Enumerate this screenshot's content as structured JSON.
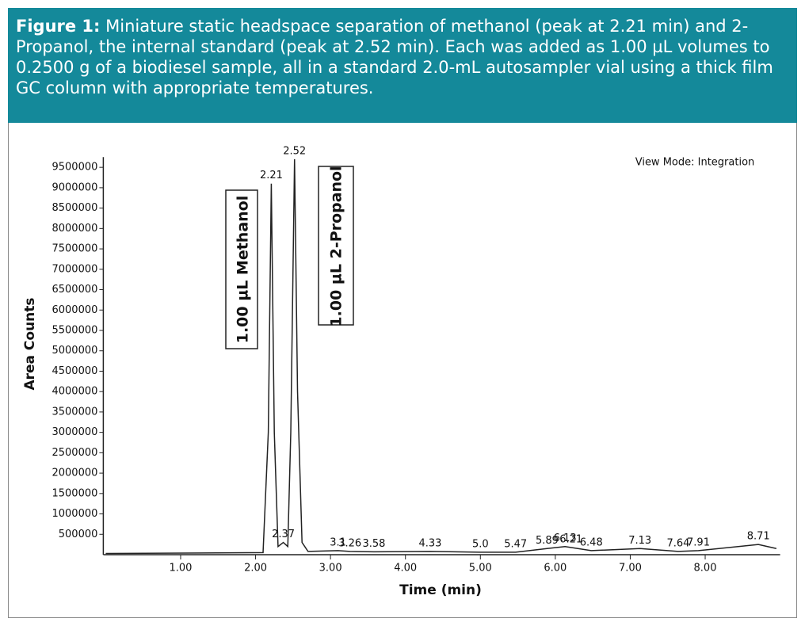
{
  "chart_data": {
    "type": "line",
    "caption_label": "Figure 1:",
    "caption": "Miniature static headspace separation of methanol (peak at 2.21 min) and 2-Propanol, the internal standard (peak at 2.52 min). Each was added as 1.00 µL volumes to 0.2500 g of a biodiesel sample, all in a standard 2.0-mL autosampler vial using a thick film GC column with appropriate temperatures.",
    "view_mode": "View Mode: Integration",
    "x_label": "Time (min)",
    "y_label": "Area Counts",
    "annotations": [
      "1.00 µL Methanol",
      "1.00 µL 2-Propanol"
    ],
    "color": "#222222",
    "x": [
      0,
      2.1,
      2.17,
      2.21,
      2.25,
      2.3,
      2.37,
      2.43,
      2.47,
      2.52,
      2.56,
      2.62,
      2.7,
      3.1,
      3.26,
      3.58,
      4.33,
      5.0,
      5.47,
      5.89,
      6.13,
      6.48,
      7.13,
      7.64,
      7.91,
      8.71,
      8.95
    ],
    "values": [
      30000,
      50000,
      3000000,
      9100000,
      3000000,
      200000,
      300000,
      200000,
      3000000,
      9700000,
      4000000,
      300000,
      80000,
      100000,
      80000,
      70000,
      80000,
      60000,
      60000,
      150000,
      200000,
      100000,
      150000,
      80000,
      100000,
      250000,
      150000
    ],
    "peak_times": [
      2.21,
      2.37,
      2.52,
      3.1,
      3.26,
      3.58,
      4.33,
      5.0,
      6.21,
      5.47,
      5.89,
      6.13,
      6.48,
      7.13,
      7.64,
      7.91,
      8.71
    ],
    "peak_labels": [
      "2.21",
      "2.37",
      "2.52",
      "3.1",
      "3.26",
      "3.58",
      "4.33",
      "5.0",
      "6.21",
      "5.47",
      "5.89",
      "6.13",
      "6.48",
      "7.13",
      "7.64",
      "7.91",
      "8.71"
    ],
    "xlim": [
      0,
      9
    ],
    "ylim": [
      0,
      9750000
    ],
    "xticks": [
      {
        "value": 1,
        "label": "1.00"
      },
      {
        "value": 2,
        "label": "2.00"
      },
      {
        "value": 3,
        "label": "3.00"
      },
      {
        "value": 4,
        "label": "4.00"
      },
      {
        "value": 5,
        "label": "5.00"
      },
      {
        "value": 6,
        "label": "6.00"
      },
      {
        "value": 7,
        "label": "7.00"
      },
      {
        "value": 8,
        "label": "8.00"
      }
    ],
    "yticks": [
      500000,
      1000000,
      1500000,
      2000000,
      2500000,
      3000000,
      3500000,
      4000000,
      4500000,
      5000000,
      5500000,
      6000000,
      6500000,
      7000000,
      7500000,
      8000000,
      8500000,
      9000000,
      9500000
    ],
    "grid": false
  }
}
